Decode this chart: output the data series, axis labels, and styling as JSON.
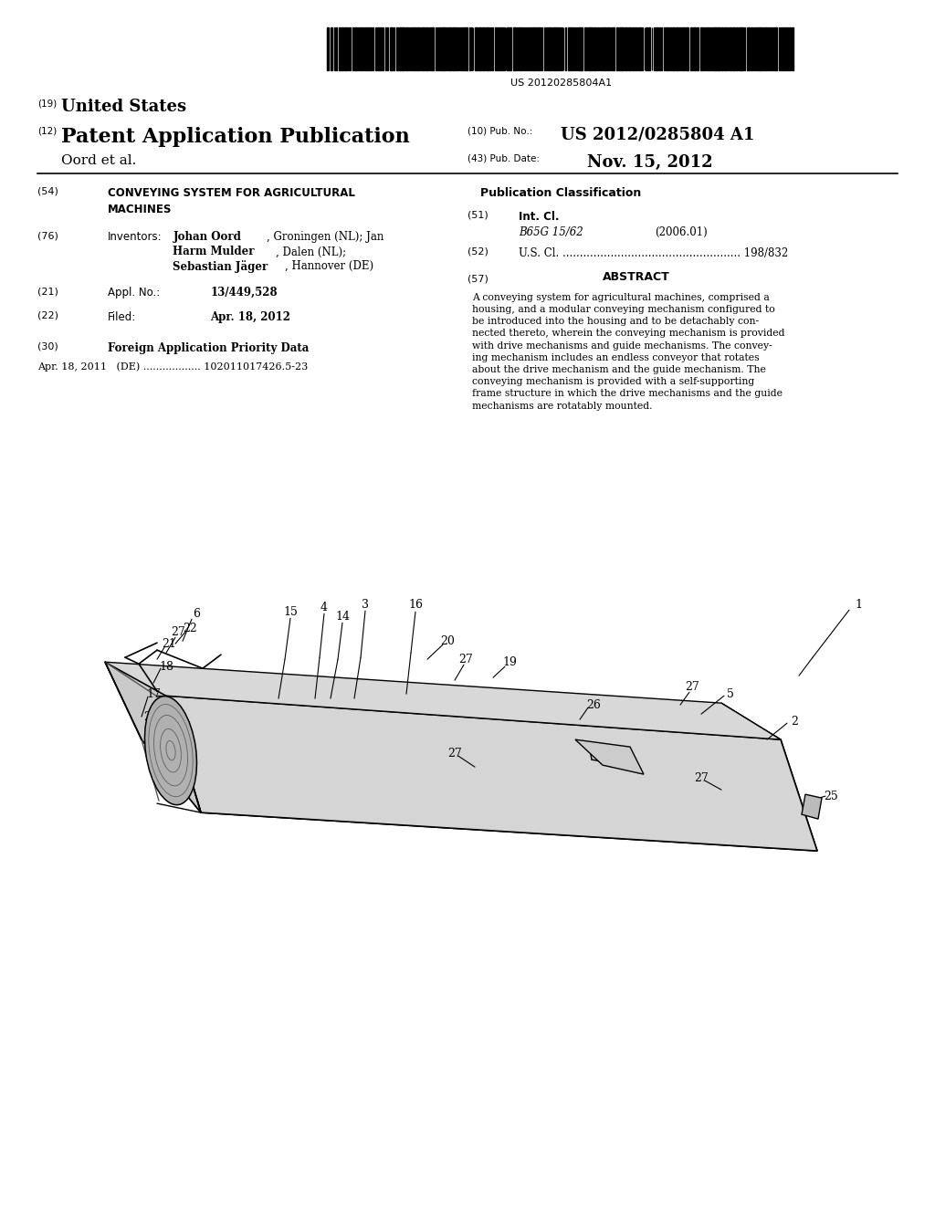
{
  "background_color": "#ffffff",
  "barcode_text": "US 20120285804A1",
  "header_19": "(19)",
  "header_19_text": "United States",
  "header_12": "(12)",
  "header_12_text": "Patent Application Publication",
  "header_10_label": "(10) Pub. No.:",
  "header_10_value": "US 2012/0285804 A1",
  "header_43_label": "(43) Pub. Date:",
  "header_43_value": "Nov. 15, 2012",
  "applicant_line": "Oord et al.",
  "field_54_label": "(54)",
  "field_76_label": "(76)",
  "field_76_key": "Inventors:",
  "field_21_label": "(21)",
  "field_21_key": "Appl. No.:",
  "field_21_value": "13/449,528",
  "field_22_label": "(22)",
  "field_22_key": "Filed:",
  "field_22_value": "Apr. 18, 2012",
  "field_30_label": "(30)",
  "field_30_text": "Foreign Application Priority Data",
  "field_30_subtext": "Apr. 18, 2011   (DE) .................. 102011017426.5-23",
  "pub_class_title": "Publication Classification",
  "field_51_label": "(51)",
  "field_51_key": "Int. Cl.",
  "field_51_class": "B65G 15/62",
  "field_51_year": "(2006.01)",
  "field_52_label": "(52)",
  "field_52_value": "198/832",
  "field_57_label": "(57)",
  "field_57_title": "ABSTRACT",
  "abstract_text": "A conveying system for agricultural machines, comprised a\nhousing, and a modular conveying mechanism configured to\nbe introduced into the housing and to be detachably con-\nnected thereto, wherein the conveying mechanism is provided\nwith drive mechanisms and guide mechanisms. The convey-\ning mechanism includes an endless conveyor that rotates\nabout the drive mechanism and the guide mechanism. The\nconveying mechanism is provided with a self-supporting\nframe structure in which the drive mechanisms and the guide\nmechanisms are rotatably mounted."
}
